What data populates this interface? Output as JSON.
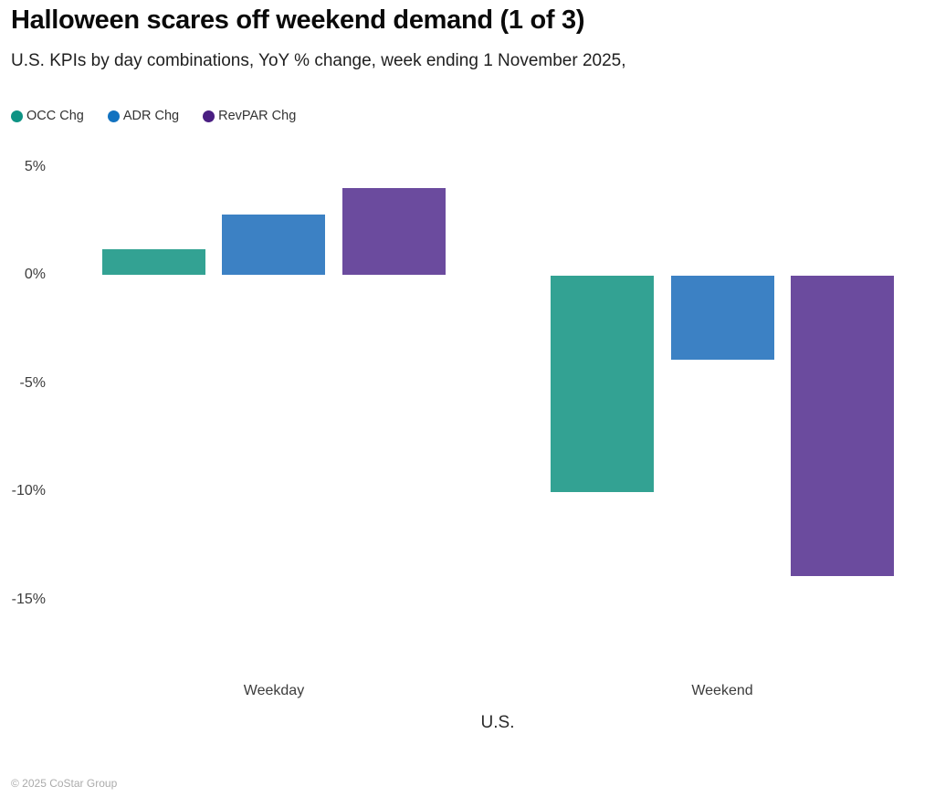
{
  "header": {
    "title": "Halloween scares off weekend demand (1 of 3)",
    "subtitle": "U.S. KPIs by day combinations, YoY % change, week ending 1 November 2025,"
  },
  "footer": {
    "copyright": "© 2025 CoStar Group"
  },
  "chart_data": {
    "type": "bar",
    "title": "Halloween scares off weekend demand (1 of 3)",
    "subtitle": "U.S. KPIs by day combinations, YoY % change, week ending 1 November 2025,",
    "categories": [
      "Weekday",
      "Weekend"
    ],
    "series": [
      {
        "name": "OCC Chg",
        "legend_color": "#0E9384",
        "bar_color": "#33A293",
        "values": [
          1.2,
          -10.0
        ]
      },
      {
        "name": "ADR Chg",
        "legend_color": "#1272C0",
        "bar_color": "#3C81C4",
        "values": [
          2.8,
          -3.9
        ]
      },
      {
        "name": "RevPAR Chg",
        "legend_color": "#4A1F82",
        "bar_color": "#6B4B9E",
        "values": [
          4.0,
          -13.9
        ]
      }
    ],
    "xlabel": "U.S.",
    "ylabel": "",
    "ylim": [
      -18.5,
      6
    ],
    "yticks": [
      5,
      0,
      -5,
      -10,
      -15
    ],
    "ytick_labels": [
      "5%",
      "0%",
      "-5%",
      "-10%",
      "-15%"
    ],
    "grid": false,
    "legend_position": "top-left"
  }
}
